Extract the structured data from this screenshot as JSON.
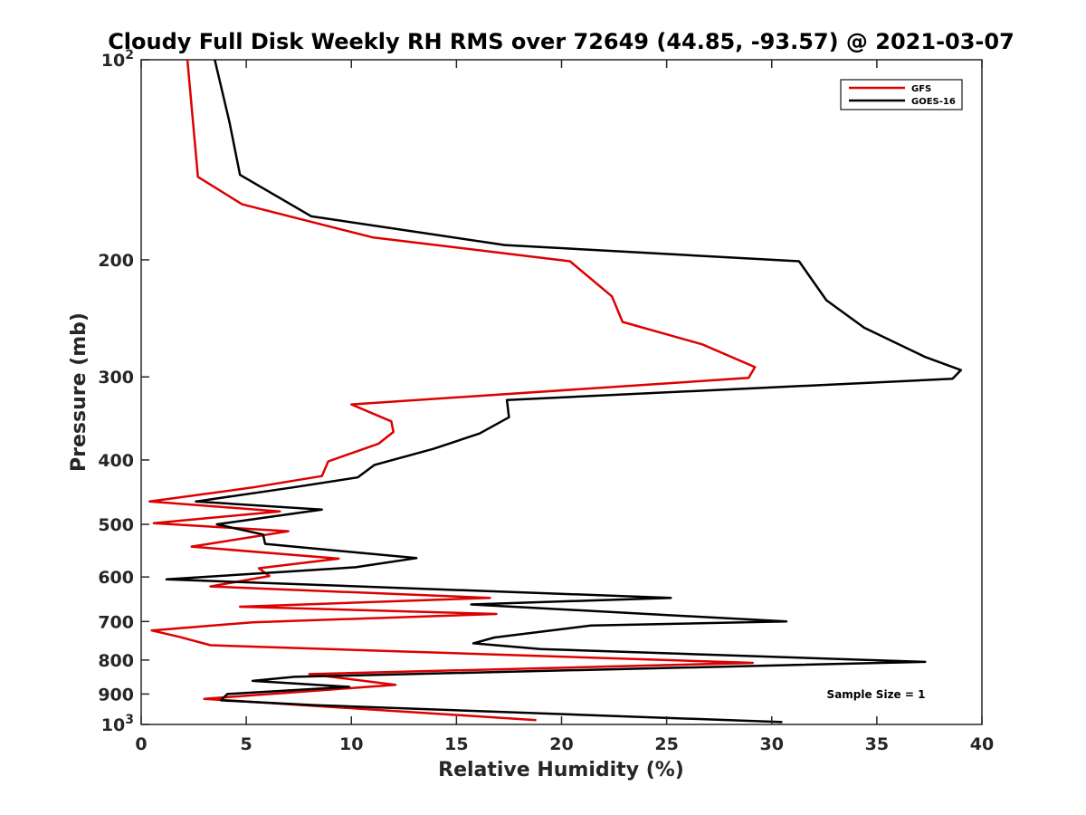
{
  "chart_data": {
    "type": "line",
    "title": "Cloudy Full Disk Weekly RH RMS over 72649 (44.85, -93.57) @ 2021-03-07",
    "xlabel": "Relative Humidity (%)",
    "ylabel": "Pressure (mb)",
    "xlim": [
      0,
      40
    ],
    "ylim": [
      100,
      1000
    ],
    "yscale": "log",
    "y_reversed": true,
    "grid": false,
    "legend_position": "top-right",
    "x_ticks": [
      0,
      5,
      10,
      15,
      20,
      25,
      30,
      35,
      40
    ],
    "x_tick_labels": [
      "0",
      "5",
      "10",
      "15",
      "20",
      "25",
      "30",
      "35",
      "40"
    ],
    "y_ticks": [
      100,
      200,
      300,
      400,
      500,
      600,
      700,
      800,
      900,
      1000
    ],
    "y_tick_labels": [
      {
        "base": "10",
        "sup": "2"
      },
      {
        "base": "200",
        "sup": ""
      },
      {
        "base": "300",
        "sup": ""
      },
      {
        "base": "400",
        "sup": ""
      },
      {
        "base": "500",
        "sup": ""
      },
      {
        "base": "600",
        "sup": ""
      },
      {
        "base": "700",
        "sup": ""
      },
      {
        "base": "800",
        "sup": ""
      },
      {
        "base": "900",
        "sup": ""
      },
      {
        "base": "10",
        "sup": "3"
      }
    ],
    "annotation": "Sample Size = 1",
    "series": [
      {
        "name": "GFS",
        "color": "#dd0000",
        "points": [
          [
            2.2,
            100
          ],
          [
            2.7,
            150
          ],
          [
            4.8,
            165
          ],
          [
            11.0,
            185
          ],
          [
            20.4,
            201
          ],
          [
            22.4,
            227
          ],
          [
            22.9,
            248
          ],
          [
            26.7,
            268
          ],
          [
            29.2,
            290
          ],
          [
            28.9,
            301
          ],
          [
            10.0,
            330
          ],
          [
            11.9,
            350
          ],
          [
            12.0,
            363
          ],
          [
            11.3,
            378
          ],
          [
            8.9,
            402
          ],
          [
            8.6,
            423
          ],
          [
            5.3,
            440
          ],
          [
            0.4,
            462
          ],
          [
            6.6,
            478
          ],
          [
            0.6,
            498
          ],
          [
            7.0,
            512
          ],
          [
            2.4,
            540
          ],
          [
            9.4,
            563
          ],
          [
            5.6,
            582
          ],
          [
            6.1,
            598
          ],
          [
            3.3,
            620
          ],
          [
            16.6,
            645
          ],
          [
            4.7,
            665
          ],
          [
            16.9,
            682
          ],
          [
            5.3,
            702
          ],
          [
            0.5,
            722
          ],
          [
            1.8,
            738
          ],
          [
            3.3,
            760
          ],
          [
            29.1,
            808
          ],
          [
            8.0,
            840
          ],
          [
            12.1,
            872
          ],
          [
            3.0,
            915
          ],
          [
            18.8,
            985
          ]
        ]
      },
      {
        "name": "GOES-16",
        "color": "#000000",
        "points": [
          [
            3.5,
            100
          ],
          [
            4.2,
            124
          ],
          [
            4.7,
            149
          ],
          [
            8.1,
            172
          ],
          [
            17.3,
            190
          ],
          [
            31.3,
            201
          ],
          [
            32.6,
            230
          ],
          [
            34.4,
            253
          ],
          [
            37.3,
            280
          ],
          [
            39.0,
            293
          ],
          [
            38.6,
            302
          ],
          [
            17.4,
            325
          ],
          [
            17.5,
            345
          ],
          [
            16.1,
            365
          ],
          [
            13.9,
            385
          ],
          [
            11.1,
            407
          ],
          [
            10.3,
            425
          ],
          [
            7.2,
            440
          ],
          [
            2.6,
            462
          ],
          [
            8.6,
            475
          ],
          [
            3.6,
            500
          ],
          [
            5.8,
            518
          ],
          [
            5.9,
            535
          ],
          [
            13.1,
            562
          ],
          [
            10.2,
            580
          ],
          [
            1.2,
            605
          ],
          [
            25.2,
            645
          ],
          [
            15.7,
            660
          ],
          [
            30.7,
            700
          ],
          [
            21.4,
            710
          ],
          [
            16.8,
            740
          ],
          [
            15.8,
            755
          ],
          [
            19.0,
            770
          ],
          [
            37.3,
            805
          ],
          [
            7.3,
            848
          ],
          [
            5.3,
            860
          ],
          [
            9.9,
            878
          ],
          [
            4.1,
            900
          ],
          [
            3.8,
            920
          ],
          [
            8.2,
            935
          ],
          [
            30.5,
            992
          ]
        ]
      }
    ]
  }
}
